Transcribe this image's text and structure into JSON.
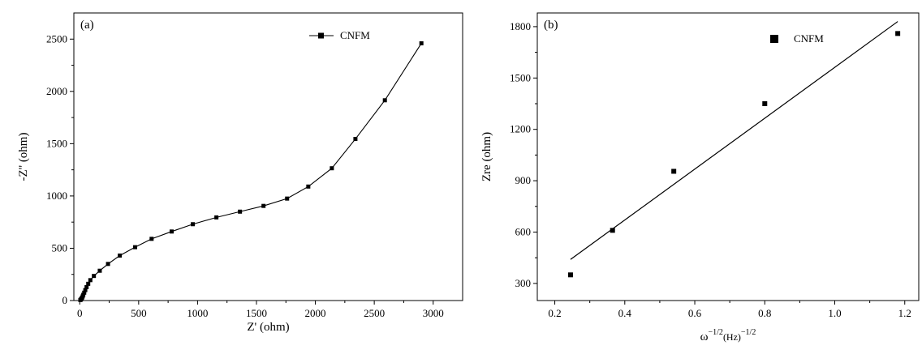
{
  "chart_data": [
    {
      "type": "line",
      "panel_label": "(a)",
      "xlabel": "Z' (ohm)",
      "ylabel": "-Z'' (ohm)",
      "xlim": [
        -50,
        3250
      ],
      "ylim": [
        0,
        2750
      ],
      "xticks": [
        0,
        500,
        1000,
        1500,
        2000,
        2500,
        3000
      ],
      "yticks": [
        0,
        500,
        1000,
        1500,
        2000,
        2500
      ],
      "legend": {
        "position": "top-right",
        "marker": "square-with-line"
      },
      "series": [
        {
          "name": "CNFM",
          "x": [
            5,
            10,
            15,
            20,
            25,
            30,
            38,
            47,
            58,
            72,
            90,
            120,
            170,
            240,
            340,
            470,
            610,
            780,
            960,
            1160,
            1360,
            1560,
            1760,
            1940,
            2140,
            2340,
            2590,
            2900
          ],
          "y": [
            5,
            10,
            18,
            28,
            40,
            55,
            75,
            100,
            128,
            160,
            195,
            235,
            285,
            350,
            430,
            510,
            590,
            660,
            730,
            795,
            850,
            905,
            975,
            1090,
            1265,
            1545,
            1915,
            2460
          ]
        }
      ]
    },
    {
      "type": "scatter",
      "panel_label": "(b)",
      "xlabel_main": "ω",
      "xlabel_sup1": "−1/2",
      "xlabel_unit": "(Hz)",
      "xlabel_sup2": "−1/2",
      "ylabel": "Zre (ohm)",
      "xlim": [
        0.15,
        1.24
      ],
      "ylim": [
        200,
        1880
      ],
      "xticks": [
        "0.2",
        "0.4",
        "0.6",
        "0.8",
        "1.0",
        "1.2"
      ],
      "yticks": [
        "300",
        "600",
        "900",
        "1200",
        "1500",
        "1800"
      ],
      "legend": {
        "position": "top-right",
        "marker": "square"
      },
      "series": [
        {
          "name": "CNFM",
          "x": [
            0.245,
            0.365,
            0.54,
            0.8,
            1.18
          ],
          "y": [
            350,
            610,
            955,
            1350,
            1760
          ]
        }
      ],
      "fit_line": {
        "x": [
          0.245,
          1.18
        ],
        "y": [
          440,
          1830
        ]
      }
    }
  ]
}
